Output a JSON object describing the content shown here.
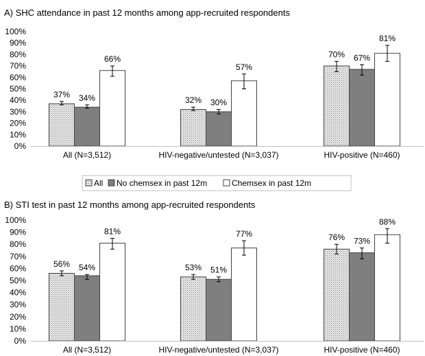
{
  "legend": [
    "All",
    "No chemsex in past 12m",
    "Chemsex in past 12m"
  ],
  "colors": {
    "all_fill": "#e6e6e6",
    "all_pattern": "#8c8c8c",
    "no_chemsex": "#7f7f7f",
    "chemsex": "#ffffff",
    "stroke": "#404040",
    "axis": "#bfbfbf"
  },
  "chart_data": [
    {
      "type": "bar",
      "title": "A) SHC attendance in past 12 months among app-recruited respondents",
      "categories": [
        "All (N=3,512)",
        "HIV-negative/untested (N=3,037)",
        "HIV-positive (N=460)"
      ],
      "yticks": [
        "0%",
        "10%",
        "20%",
        "30%",
        "40%",
        "50%",
        "60%",
        "70%",
        "80%",
        "90%",
        "100%"
      ],
      "ylim": [
        0,
        100
      ],
      "series": [
        {
          "name": "All",
          "values": [
            37,
            32,
            70
          ],
          "labels": [
            "37%",
            "32%",
            "70%"
          ],
          "err": [
            [
              36,
              39
            ],
            [
              31,
              34
            ],
            [
              65,
              74
            ]
          ]
        },
        {
          "name": "No chemsex in past 12m",
          "values": [
            34,
            30,
            67
          ],
          "labels": [
            "34%",
            "30%",
            "67%"
          ],
          "err": [
            [
              33,
              36
            ],
            [
              28,
              32
            ],
            [
              62,
              71
            ]
          ]
        },
        {
          "name": "Chemsex in past 12m",
          "values": [
            66,
            57,
            81
          ],
          "labels": [
            "66%",
            "57%",
            "81%"
          ],
          "err": [
            [
              61,
              70
            ],
            [
              50,
              63
            ],
            [
              74,
              88
            ]
          ]
        }
      ]
    },
    {
      "type": "bar",
      "title": "B) STI test in past 12 months among app-recruited respondents",
      "categories": [
        "All (N=3,512)",
        "HIV-negative/untested (N=3,037)",
        "HIV-positive (N=460)"
      ],
      "yticks": [
        "0%",
        "10%",
        "20%",
        "30%",
        "40%",
        "50%",
        "60%",
        "70%",
        "80%",
        "90%",
        "100%"
      ],
      "ylim": [
        0,
        100
      ],
      "series": [
        {
          "name": "All",
          "values": [
            56,
            53,
            76
          ],
          "labels": [
            "56%",
            "53%",
            "76%"
          ],
          "err": [
            [
              54,
              58
            ],
            [
              51,
              55
            ],
            [
              72,
              80
            ]
          ]
        },
        {
          "name": "No chemsex in past 12m",
          "values": [
            54,
            51,
            73
          ],
          "labels": [
            "54%",
            "51%",
            "73%"
          ],
          "err": [
            [
              51,
              55
            ],
            [
              49,
              53
            ],
            [
              68,
              77
            ]
          ]
        },
        {
          "name": "Chemsex in past 12m",
          "values": [
            81,
            77,
            88
          ],
          "labels": [
            "81%",
            "77%",
            "88%"
          ],
          "err": [
            [
              76,
              85
            ],
            [
              71,
              83
            ],
            [
              81,
              93
            ]
          ]
        }
      ]
    }
  ]
}
